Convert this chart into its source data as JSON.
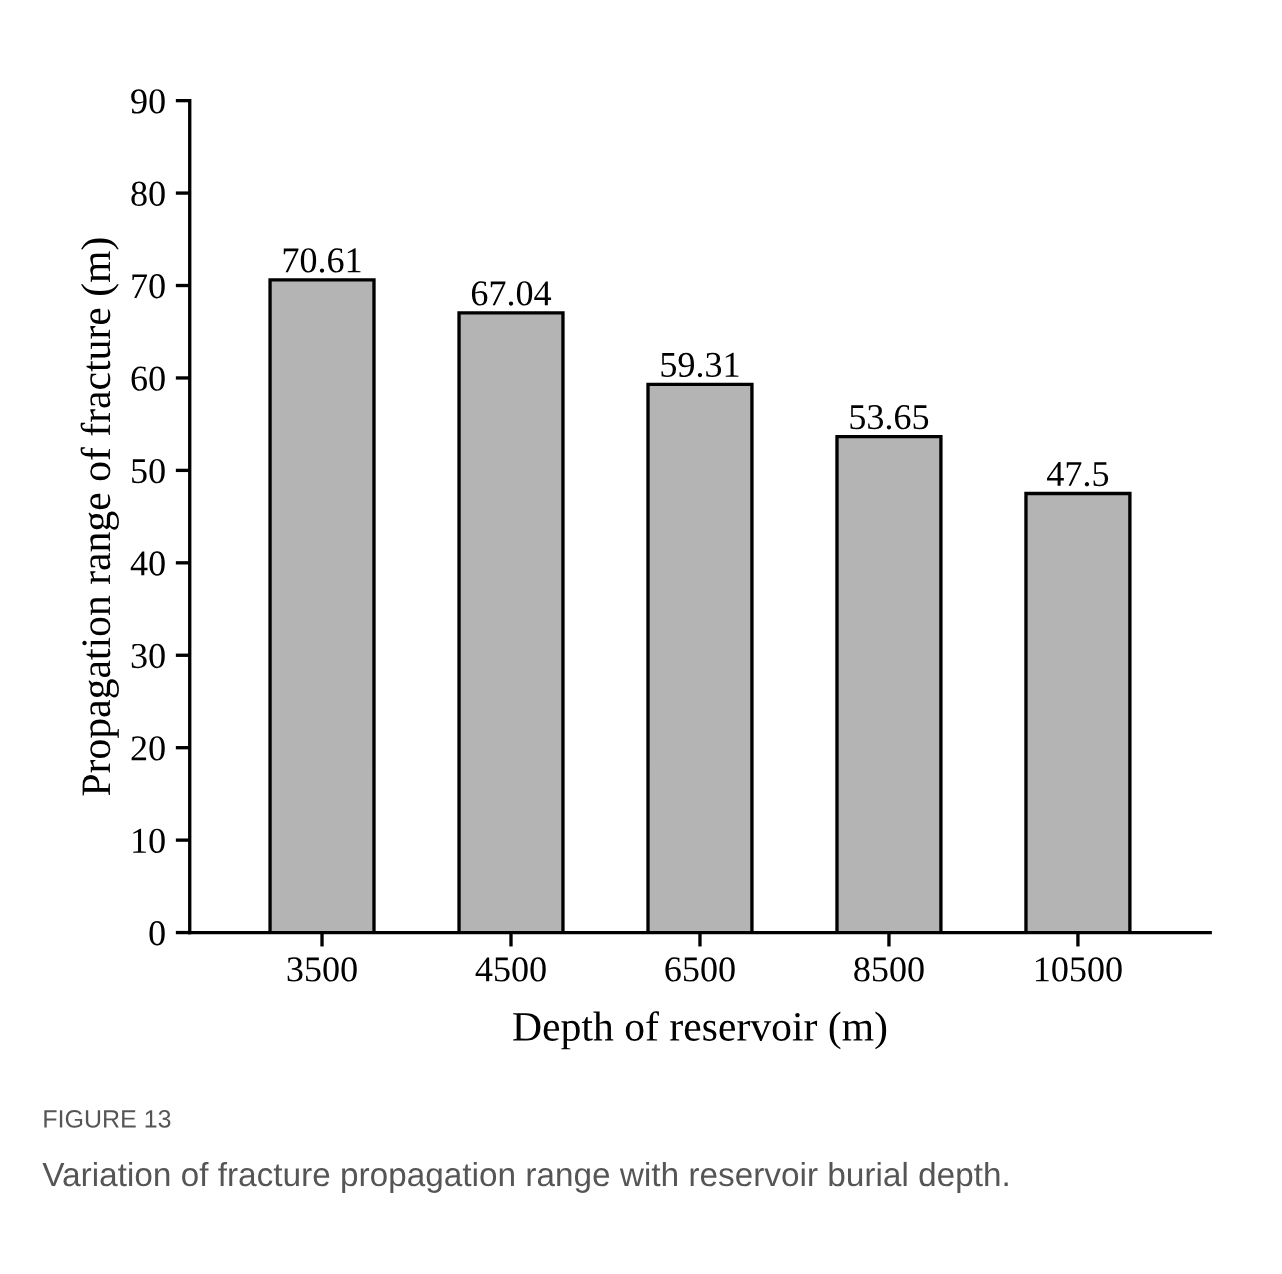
{
  "chart_data": {
    "type": "bar",
    "xlabel": "Depth of reservoir (m)",
    "ylabel": "Propagation range of fracture (m)",
    "categories": [
      "3500",
      "4500",
      "6500",
      "8500",
      "10500"
    ],
    "values": [
      70.61,
      67.04,
      59.31,
      53.65,
      47.5
    ],
    "color": "#b4b4b4",
    "data_labels": true,
    "ylim": [
      0,
      90
    ],
    "yticks": [
      0,
      10,
      20,
      30,
      40,
      50,
      60,
      70,
      80,
      90
    ],
    "grid": false,
    "annotations": [
      "FIGURE 13",
      "Variation of fracture propagation range with reservoir burial depth."
    ]
  }
}
